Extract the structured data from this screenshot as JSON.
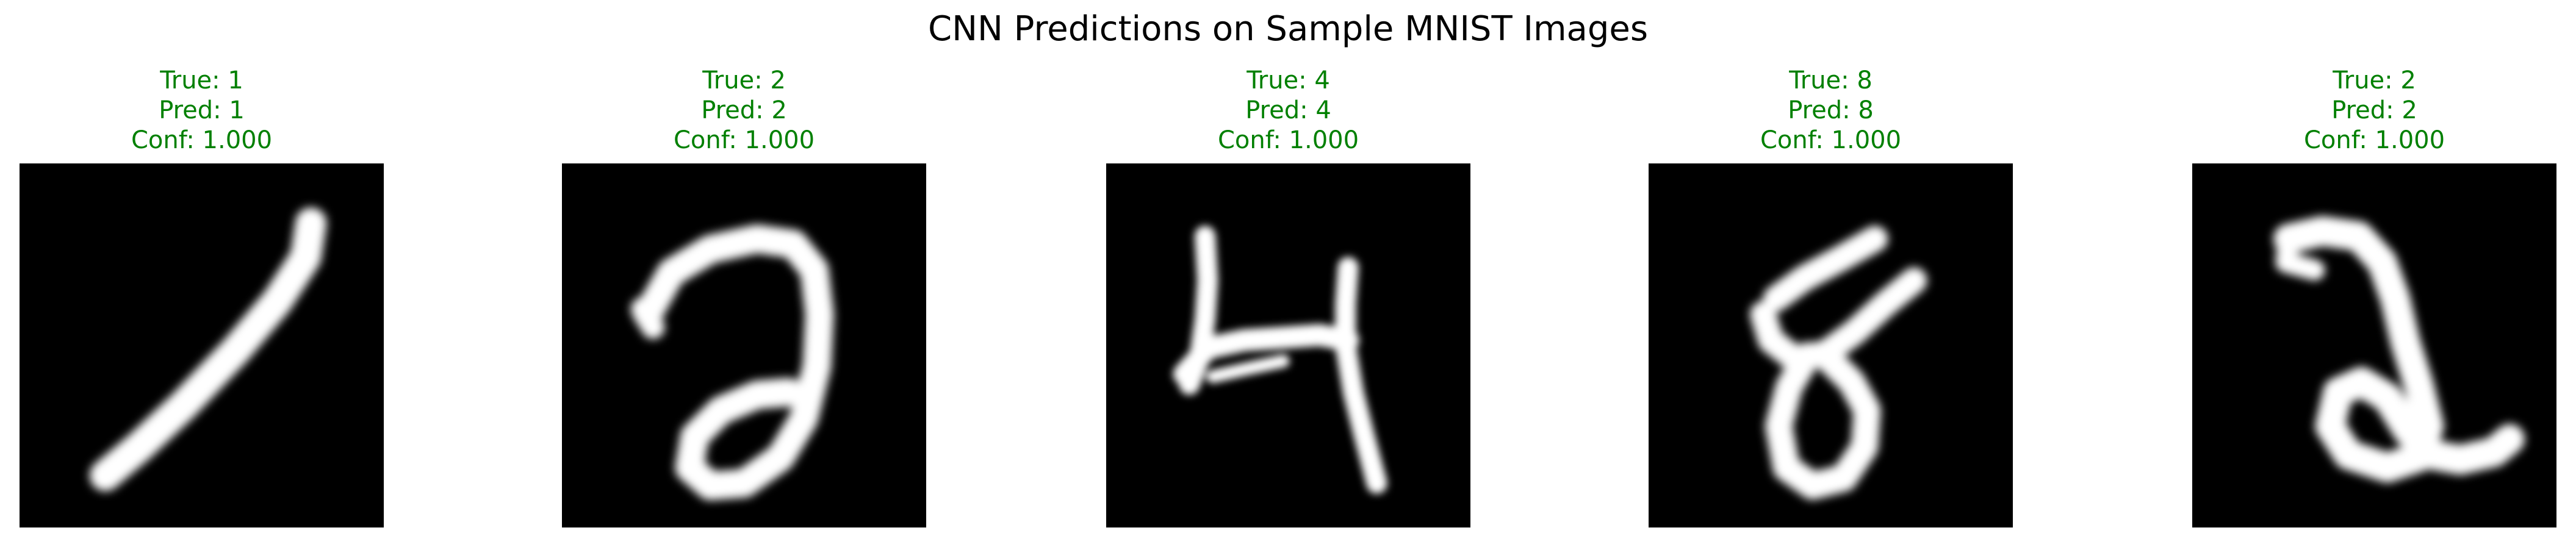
{
  "figure": {
    "title": "CNN Predictions on Sample MNIST Images"
  },
  "colors": {
    "correct": "#008000",
    "background": "#000000",
    "stroke": "#ffffff"
  },
  "panels": [
    {
      "true_label": "True: 1",
      "pred_label": "Pred: 1",
      "conf_label": "Conf: 1.000",
      "digit": "1"
    },
    {
      "true_label": "True: 2",
      "pred_label": "Pred: 2",
      "conf_label": "Conf: 1.000",
      "digit": "2"
    },
    {
      "true_label": "True: 4",
      "pred_label": "Pred: 4",
      "conf_label": "Conf: 1.000",
      "digit": "4"
    },
    {
      "true_label": "True: 8",
      "pred_label": "Pred: 8",
      "conf_label": "Conf: 1.000",
      "digit": "8"
    },
    {
      "true_label": "True: 2",
      "pred_label": "Pred: 2",
      "conf_label": "Conf: 1.000",
      "digit": "2"
    }
  ]
}
